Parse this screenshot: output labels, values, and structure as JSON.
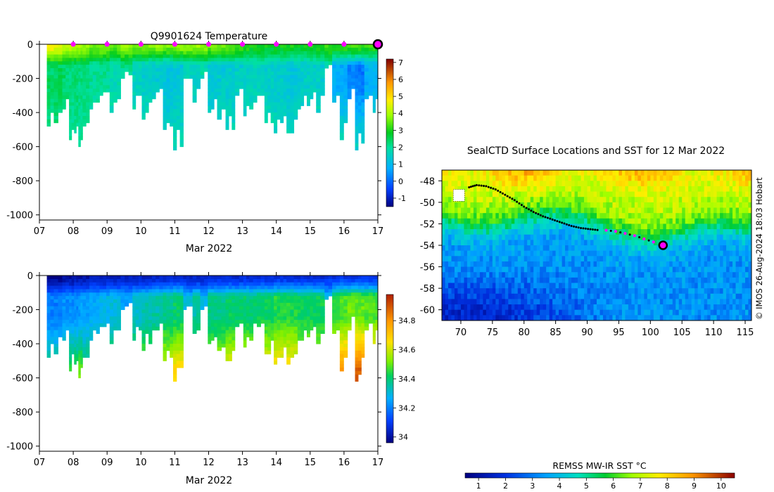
{
  "chart_data": [
    {
      "id": "temperature",
      "type": "heatmap",
      "title": "Q9901624  Temperature",
      "xlabel": "Mar 2022",
      "ylabel": "",
      "x_ticks": [
        "07",
        "08",
        "09",
        "10",
        "11",
        "12",
        "13",
        "14",
        "15",
        "16",
        "17"
      ],
      "xlim": [
        7,
        17
      ],
      "y_ticks": [
        0,
        -200,
        -400,
        -600,
        -800,
        -1000
      ],
      "ylim": [
        -1030,
        0
      ],
      "colorbar": {
        "ticks": [
          "7",
          "6",
          "5",
          "4",
          "3",
          "2",
          "1",
          "0",
          "-1"
        ],
        "range": [
          -1.5,
          7.2
        ]
      },
      "markers_days": [
        8,
        9,
        10,
        11,
        12,
        13,
        14,
        15,
        16
      ],
      "latest_marker_day": 17,
      "profiles": [
        {
          "day": 7.3,
          "depth": 470,
          "surface": 4.8,
          "mid": 2.4,
          "deep": 2.0
        },
        {
          "day": 7.55,
          "depth": 450,
          "surface": 4.6,
          "mid": 2.5,
          "deep": 2.1
        },
        {
          "day": 7.8,
          "depth": 380,
          "surface": 4.2,
          "mid": 2.3,
          "deep": 2.0
        },
        {
          "day": 7.95,
          "depth": 550,
          "surface": 4.2,
          "mid": 2.2,
          "deep": 2.0
        },
        {
          "day": 8.1,
          "depth": 520,
          "surface": 4.0,
          "mid": 2.3,
          "deep": 2.0
        },
        {
          "day": 8.2,
          "depth": 590,
          "surface": 4.0,
          "mid": 2.2,
          "deep": 2.0
        },
        {
          "day": 8.35,
          "depth": 470,
          "surface": 3.9,
          "mid": 2.2,
          "deep": 2.0
        },
        {
          "day": 8.6,
          "depth": 380,
          "surface": 3.6,
          "mid": 2.0,
          "deep": 1.9
        },
        {
          "day": 8.95,
          "depth": 300,
          "surface": 3.8,
          "mid": 2.0,
          "deep": 1.9
        },
        {
          "day": 9.2,
          "depth": 400,
          "surface": 3.5,
          "mid": 1.8,
          "deep": 1.8
        },
        {
          "day": 9.6,
          "depth": 190,
          "surface": 3.8,
          "mid": 2.1,
          "deep": 2.0
        },
        {
          "day": 9.9,
          "depth": 380,
          "surface": 3.6,
          "mid": 1.6,
          "deep": 1.8
        },
        {
          "day": 10.15,
          "depth": 430,
          "surface": 3.7,
          "mid": 1.5,
          "deep": 1.8
        },
        {
          "day": 10.5,
          "depth": 320,
          "surface": 3.8,
          "mid": 1.4,
          "deep": 1.7
        },
        {
          "day": 10.8,
          "depth": 490,
          "surface": 3.7,
          "mid": 1.2,
          "deep": 1.6
        },
        {
          "day": 11.1,
          "depth": 610,
          "surface": 3.9,
          "mid": 1.3,
          "deep": 1.7
        },
        {
          "day": 11.4,
          "depth": 200,
          "surface": 3.9,
          "mid": 1.6,
          "deep": 1.8
        },
        {
          "day": 11.65,
          "depth": 330,
          "surface": 3.9,
          "mid": 1.5,
          "deep": 1.7
        },
        {
          "day": 11.85,
          "depth": 190,
          "surface": 3.8,
          "mid": 1.8,
          "deep": 1.9
        },
        {
          "day": 12.1,
          "depth": 400,
          "surface": 3.6,
          "mid": 1.3,
          "deep": 1.6
        },
        {
          "day": 12.4,
          "depth": 430,
          "surface": 3.5,
          "mid": 1.4,
          "deep": 1.7
        },
        {
          "day": 12.6,
          "depth": 500,
          "surface": 3.5,
          "mid": 1.4,
          "deep": 1.7
        },
        {
          "day": 12.95,
          "depth": 300,
          "surface": 3.4,
          "mid": 1.5,
          "deep": 1.7
        },
        {
          "day": 13.1,
          "depth": 420,
          "surface": 3.2,
          "mid": 1.5,
          "deep": 1.7
        },
        {
          "day": 13.3,
          "depth": 370,
          "surface": 3.0,
          "mid": 1.6,
          "deep": 1.8
        },
        {
          "day": 13.55,
          "depth": 300,
          "surface": 3.0,
          "mid": 1.6,
          "deep": 1.8
        },
        {
          "day": 13.75,
          "depth": 450,
          "surface": 2.9,
          "mid": 1.5,
          "deep": 1.8
        },
        {
          "day": 14.1,
          "depth": 520,
          "surface": 3.0,
          "mid": 1.4,
          "deep": 1.7
        },
        {
          "day": 14.5,
          "depth": 520,
          "surface": 3.0,
          "mid": 1.3,
          "deep": 1.7
        },
        {
          "day": 14.75,
          "depth": 370,
          "surface": 2.9,
          "mid": 1.4,
          "deep": 1.8
        },
        {
          "day": 15.05,
          "depth": 350,
          "surface": 3.0,
          "mid": 1.5,
          "deep": 1.8
        },
        {
          "day": 15.3,
          "depth": 390,
          "surface": 3.0,
          "mid": 1.5,
          "deep": 1.8
        },
        {
          "day": 15.55,
          "depth": 130,
          "surface": 3.2,
          "mid": 1.8,
          "deep": 1.9
        },
        {
          "day": 15.75,
          "depth": 330,
          "surface": 3.1,
          "mid": 0.8,
          "deep": 1.6
        },
        {
          "day": 16.0,
          "depth": 550,
          "surface": 3.2,
          "mid": 0.7,
          "deep": 1.6
        },
        {
          "day": 16.2,
          "depth": 310,
          "surface": 3.4,
          "mid": 0.3,
          "deep": 1.5
        },
        {
          "day": 16.45,
          "depth": 610,
          "surface": 3.3,
          "mid": 0.2,
          "deep": 1.5
        },
        {
          "day": 16.75,
          "depth": 310,
          "surface": 3.3,
          "mid": 0.8,
          "deep": 1.6
        },
        {
          "day": 16.95,
          "depth": 400,
          "surface": 3.2,
          "mid": 0.9,
          "deep": 1.7
        }
      ]
    },
    {
      "id": "salinity",
      "type": "heatmap",
      "title": "",
      "xlabel": "Mar 2022",
      "ylabel": "",
      "x_ticks": [
        "07",
        "08",
        "09",
        "10",
        "11",
        "12",
        "13",
        "14",
        "15",
        "16",
        "17"
      ],
      "xlim": [
        7,
        17
      ],
      "y_ticks": [
        0,
        -200,
        -400,
        -600,
        -800,
        -1000
      ],
      "ylim": [
        -1030,
        0
      ],
      "colorbar": {
        "ticks": [
          "34.8",
          "34.6",
          "34.4",
          "34.2",
          "34"
        ],
        "range": [
          33.96,
          34.98
        ]
      },
      "profiles": [
        {
          "day": 7.3,
          "depth": 470,
          "surface": 33.98,
          "mid": 34.2,
          "deep": 34.38
        },
        {
          "day": 7.55,
          "depth": 450,
          "surface": 33.98,
          "mid": 34.2,
          "deep": 34.38
        },
        {
          "day": 7.8,
          "depth": 380,
          "surface": 33.99,
          "mid": 34.22,
          "deep": 34.4
        },
        {
          "day": 7.95,
          "depth": 550,
          "surface": 33.99,
          "mid": 34.22,
          "deep": 34.45
        },
        {
          "day": 8.1,
          "depth": 520,
          "surface": 34.0,
          "mid": 34.22,
          "deep": 34.45
        },
        {
          "day": 8.2,
          "depth": 590,
          "surface": 34.0,
          "mid": 34.24,
          "deep": 34.5
        },
        {
          "day": 8.35,
          "depth": 470,
          "surface": 34.0,
          "mid": 34.24,
          "deep": 34.42
        },
        {
          "day": 8.6,
          "depth": 380,
          "surface": 34.02,
          "mid": 34.26,
          "deep": 34.42
        },
        {
          "day": 8.95,
          "depth": 300,
          "surface": 34.02,
          "mid": 34.28,
          "deep": 34.42
        },
        {
          "day": 9.2,
          "depth": 400,
          "surface": 34.02,
          "mid": 34.3,
          "deep": 34.45
        },
        {
          "day": 9.6,
          "depth": 190,
          "surface": 34.04,
          "mid": 34.25,
          "deep": 34.32
        },
        {
          "day": 9.9,
          "depth": 380,
          "surface": 34.03,
          "mid": 34.32,
          "deep": 34.48
        },
        {
          "day": 10.15,
          "depth": 430,
          "surface": 34.03,
          "mid": 34.34,
          "deep": 34.52
        },
        {
          "day": 10.5,
          "depth": 320,
          "surface": 34.04,
          "mid": 34.35,
          "deep": 34.52
        },
        {
          "day": 10.8,
          "depth": 490,
          "surface": 34.04,
          "mid": 34.38,
          "deep": 34.62
        },
        {
          "day": 11.1,
          "depth": 610,
          "surface": 34.05,
          "mid": 34.4,
          "deep": 34.68
        },
        {
          "day": 11.4,
          "depth": 200,
          "surface": 34.04,
          "mid": 34.3,
          "deep": 34.36
        },
        {
          "day": 11.65,
          "depth": 330,
          "surface": 34.04,
          "mid": 34.36,
          "deep": 34.52
        },
        {
          "day": 11.85,
          "depth": 190,
          "surface": 34.04,
          "mid": 34.28,
          "deep": 34.35
        },
        {
          "day": 12.1,
          "depth": 400,
          "surface": 34.05,
          "mid": 34.38,
          "deep": 34.55
        },
        {
          "day": 12.4,
          "depth": 430,
          "surface": 34.05,
          "mid": 34.38,
          "deep": 34.58
        },
        {
          "day": 12.6,
          "depth": 500,
          "surface": 34.05,
          "mid": 34.4,
          "deep": 34.64
        },
        {
          "day": 12.95,
          "depth": 300,
          "surface": 34.05,
          "mid": 34.4,
          "deep": 34.55
        },
        {
          "day": 13.1,
          "depth": 420,
          "surface": 34.06,
          "mid": 34.4,
          "deep": 34.62
        },
        {
          "day": 13.3,
          "depth": 370,
          "surface": 34.06,
          "mid": 34.4,
          "deep": 34.6
        },
        {
          "day": 13.55,
          "depth": 300,
          "surface": 34.06,
          "mid": 34.42,
          "deep": 34.58
        },
        {
          "day": 13.75,
          "depth": 450,
          "surface": 34.06,
          "mid": 34.42,
          "deep": 34.65
        },
        {
          "day": 14.1,
          "depth": 520,
          "surface": 34.06,
          "mid": 34.44,
          "deep": 34.68
        },
        {
          "day": 14.5,
          "depth": 520,
          "surface": 34.06,
          "mid": 34.44,
          "deep": 34.68
        },
        {
          "day": 14.75,
          "depth": 370,
          "surface": 34.06,
          "mid": 34.42,
          "deep": 34.6
        },
        {
          "day": 15.05,
          "depth": 350,
          "surface": 34.06,
          "mid": 34.42,
          "deep": 34.58
        },
        {
          "day": 15.3,
          "depth": 390,
          "surface": 34.06,
          "mid": 34.42,
          "deep": 34.6
        },
        {
          "day": 15.55,
          "depth": 130,
          "surface": 34.08,
          "mid": 34.3,
          "deep": 34.32
        },
        {
          "day": 15.75,
          "depth": 330,
          "surface": 34.06,
          "mid": 34.46,
          "deep": 34.65
        },
        {
          "day": 16.0,
          "depth": 550,
          "surface": 34.08,
          "mid": 34.48,
          "deep": 34.8
        },
        {
          "day": 16.2,
          "depth": 310,
          "surface": 34.08,
          "mid": 34.5,
          "deep": 34.75
        },
        {
          "day": 16.45,
          "depth": 610,
          "surface": 34.08,
          "mid": 34.5,
          "deep": 34.88
        },
        {
          "day": 16.75,
          "depth": 310,
          "surface": 34.08,
          "mid": 34.48,
          "deep": 34.75
        },
        {
          "day": 16.95,
          "depth": 400,
          "surface": 34.08,
          "mid": 34.48,
          "deep": 34.8
        }
      ]
    },
    {
      "id": "sst-map",
      "type": "heatmap",
      "title": "SealCTD Surface Locations and SST for 12 Mar 2022",
      "xlabel": "",
      "ylabel": "",
      "x_ticks": [
        70,
        75,
        80,
        85,
        90,
        95,
        100,
        105,
        110,
        115
      ],
      "xlim": [
        67,
        116
      ],
      "y_ticks": [
        -48,
        -50,
        -52,
        -54,
        -56,
        -58,
        -60
      ],
      "ylim": [
        -61,
        -47
      ],
      "colorbar": {
        "label": "REMSS MW-IR SST °C",
        "ticks": [
          "1",
          "2",
          "3",
          "4",
          "5",
          "6",
          "7",
          "8",
          "9",
          "10"
        ],
        "range": [
          0.5,
          10.5
        ]
      },
      "track_previous": [
        [
          71.3,
          -48.6
        ],
        [
          72.5,
          -48.4
        ],
        [
          74,
          -48.5
        ],
        [
          75.5,
          -48.8
        ],
        [
          77,
          -49.3
        ],
        [
          78.5,
          -49.8
        ],
        [
          80,
          -50.4
        ],
        [
          81.5,
          -50.9
        ],
        [
          83,
          -51.3
        ],
        [
          84.5,
          -51.6
        ],
        [
          86,
          -51.9
        ],
        [
          87.5,
          -52.2
        ],
        [
          89,
          -52.4
        ],
        [
          90.5,
          -52.5
        ],
        [
          92,
          -52.6
        ]
      ],
      "track_recent": [
        [
          93,
          -52.6
        ],
        [
          94.5,
          -52.7
        ],
        [
          96,
          -52.9
        ],
        [
          97.5,
          -53.1
        ],
        [
          99,
          -53.4
        ],
        [
          100.5,
          -53.7
        ]
      ],
      "latest_position": [
        102,
        -54
      ],
      "copyright": "© IMOS 26-Aug-2024 18:03 Hobart"
    }
  ]
}
